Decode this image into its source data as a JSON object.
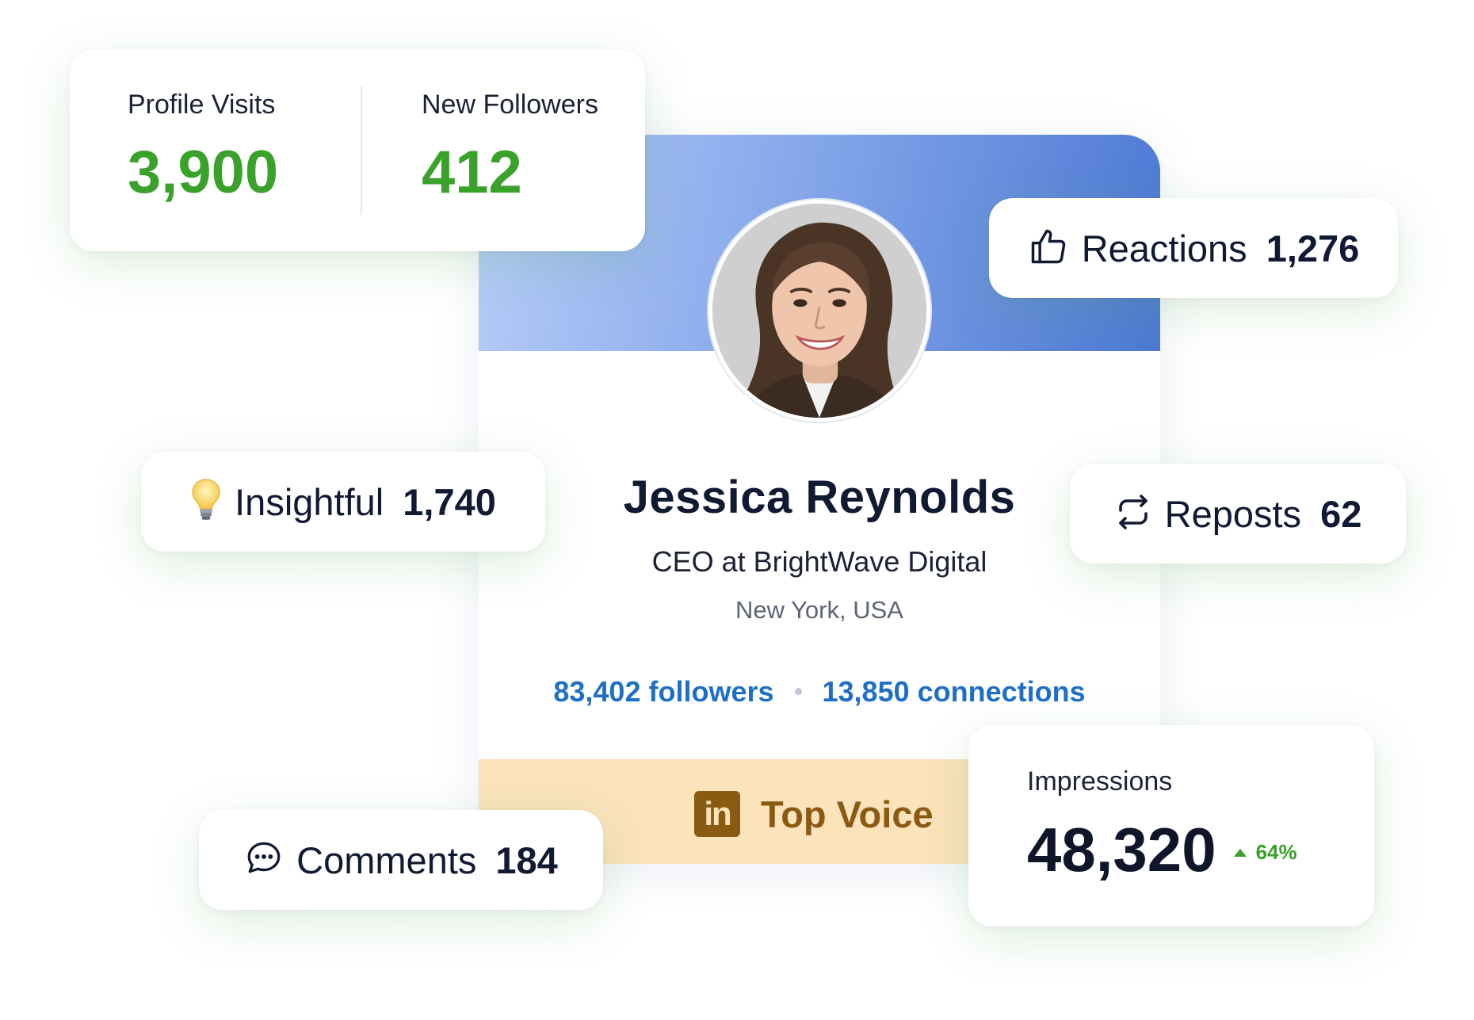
{
  "profile": {
    "name": "Jessica Reynolds",
    "title": "CEO at BrightWave Digital",
    "location": "New York, USA",
    "followers": "83,402 followers",
    "connections": "13,850 connections",
    "badge": {
      "icon": "linkedin-icon",
      "icon_text": "in",
      "label": "Top Voice"
    }
  },
  "stats_card": {
    "profile_visits": {
      "label": "Profile Visits",
      "value": "3,900"
    },
    "new_followers": {
      "label": "New Followers",
      "value": "412"
    }
  },
  "reactions": {
    "icon": "thumbs-up-icon",
    "label": "Reactions",
    "value": "1,276"
  },
  "insightful": {
    "icon": "lightbulb-icon",
    "label": "Insightful",
    "value": "1,740"
  },
  "reposts": {
    "icon": "repost-icon",
    "label": "Reposts",
    "value": "62"
  },
  "comments": {
    "icon": "comment-icon",
    "label": "Comments",
    "value": "184"
  },
  "impressions": {
    "label": "Impressions",
    "value": "48,320",
    "change": "64%",
    "trend": "up"
  },
  "colors": {
    "accent_green": "#3aa22b",
    "link_blue": "#1f6fc7",
    "badge_bg": "#fbe3bb",
    "badge_text": "#8a5a12",
    "banner_start": "#b6cdf8",
    "banner_end": "#4c78d4"
  }
}
